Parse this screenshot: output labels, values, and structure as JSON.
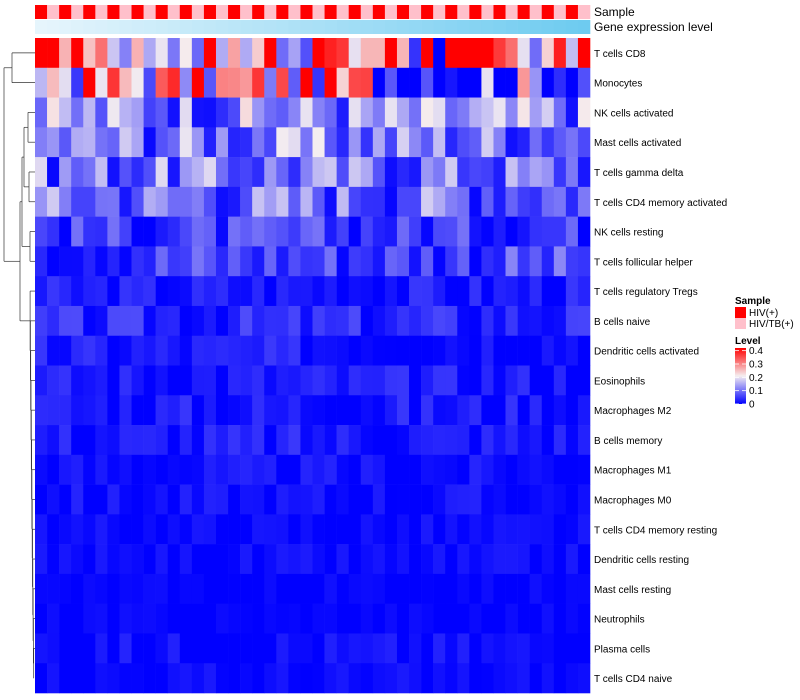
{
  "chart_data": {
    "type": "heatmap",
    "title": "",
    "annotation_labels": {
      "sample": "Sample",
      "gene": "Gene expression level"
    },
    "rows": [
      "T cells CD8",
      "Monocytes",
      "NK cells activated",
      "Mast cells activated",
      "T cells gamma delta",
      "T cells CD4 memory activated",
      "NK cells resting",
      "T cells follicular helper",
      "T cells regulatory  Tregs",
      "B cells naive",
      "Dendritic cells activated",
      "Eosinophils",
      "Macrophages M2",
      "B cells memory",
      "Macrophages M1",
      "Macrophages M0",
      "T cells CD4 memory resting",
      "Dendritic cells resting",
      "Mast cells resting",
      "Neutrophils",
      "Plasma cells",
      "T cells CD4 naive"
    ],
    "row_means": [
      0.32,
      0.24,
      0.12,
      0.11,
      0.1,
      0.1,
      0.05,
      0.06,
      0.02,
      0.03,
      0.02,
      0.02,
      0.02,
      0.02,
      0.01,
      0.01,
      0.005,
      0.005,
      0.0,
      0.0,
      0.01,
      0.005
    ],
    "n_columns": 46,
    "sample_groups": [
      "HIV(+)",
      "HIV/TB(+)",
      "HIV(+)",
      "HIV/TB(+)",
      "HIV(+)",
      "HIV/TB(+)",
      "HIV(+)",
      "HIV/TB(+)",
      "HIV(+)",
      "HIV/TB(+)",
      "HIV(+)",
      "HIV/TB(+)",
      "HIV(+)",
      "HIV/TB(+)",
      "HIV(+)",
      "HIV/TB(+)",
      "HIV(+)",
      "HIV/TB(+)",
      "HIV(+)",
      "HIV/TB(+)",
      "HIV(+)",
      "HIV/TB(+)",
      "HIV(+)",
      "HIV/TB(+)",
      "HIV(+)",
      "HIV/TB(+)",
      "HIV(+)",
      "HIV/TB(+)",
      "HIV(+)",
      "HIV/TB(+)",
      "HIV(+)",
      "HIV/TB(+)",
      "HIV(+)",
      "HIV/TB(+)",
      "HIV(+)",
      "HIV/TB(+)",
      "HIV(+)",
      "HIV/TB(+)",
      "HIV(+)",
      "HIV/TB(+)",
      "HIV(+)",
      "HIV/TB(+)",
      "HIV(+)",
      "HIV/TB(+)",
      "HIV(+)",
      "HIV/TB(+)"
    ],
    "gene_expression": [
      0.0,
      0.02,
      0.04,
      0.07,
      0.09,
      0.11,
      0.13,
      0.16,
      0.18,
      0.2,
      0.22,
      0.24,
      0.27,
      0.29,
      0.31,
      0.33,
      0.36,
      0.38,
      0.4,
      0.42,
      0.44,
      0.47,
      0.49,
      0.51,
      0.53,
      0.56,
      0.58,
      0.6,
      0.62,
      0.64,
      0.67,
      0.69,
      0.71,
      0.73,
      0.76,
      0.78,
      0.8,
      0.82,
      0.84,
      0.87,
      0.89,
      0.91,
      0.93,
      0.96,
      0.98,
      1.0
    ],
    "legend": {
      "sample_title": "Sample",
      "sample_entries": [
        {
          "label": "HIV(+)",
          "color": "#ff0000"
        },
        {
          "label": "HIV/TB(+)",
          "color": "#ffc0cb"
        }
      ],
      "level_title": "Level",
      "level_ticks": [
        "0.4",
        "0.3",
        "0.2",
        "0.1",
        "0"
      ],
      "level_range": [
        0,
        0.42
      ]
    },
    "colors": {
      "low": "#0000ff",
      "mid": "#f5eef0",
      "high": "#ff0000",
      "gene_low": "#e6f5fc",
      "gene_high": "#6ecbf0"
    }
  }
}
